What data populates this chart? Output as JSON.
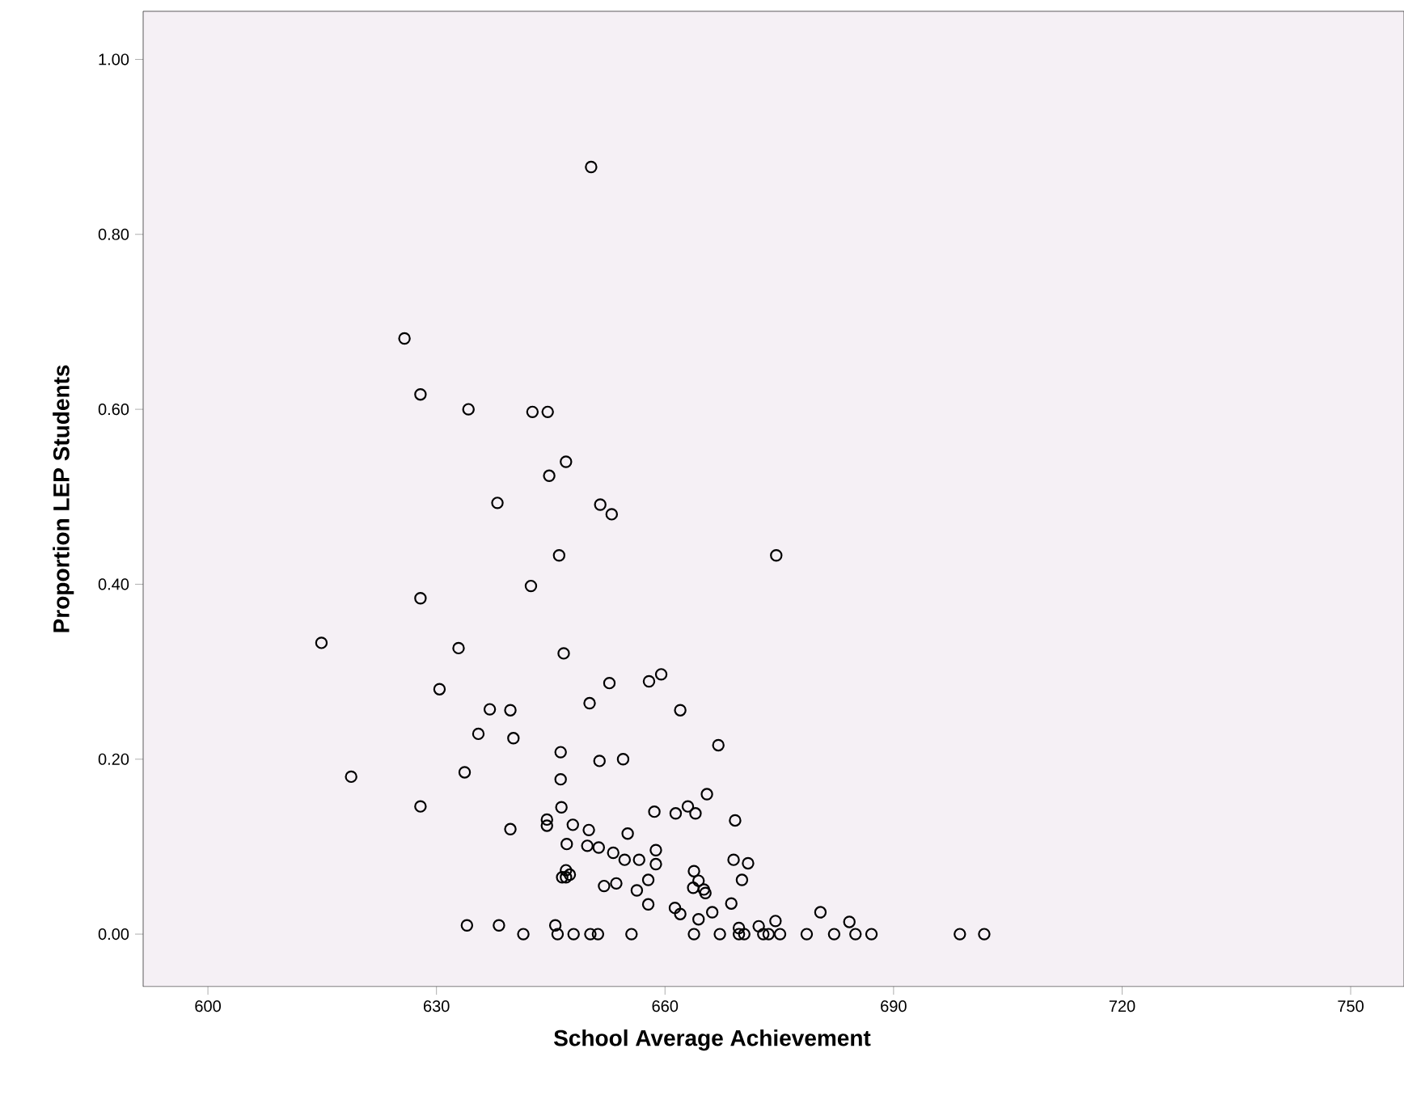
{
  "chart_data": {
    "type": "scatter",
    "xlabel": "School Average Achievement",
    "ylabel": "Proportion LEP Students",
    "xlim": [
      591.5,
      757
    ],
    "xticks": [
      600,
      630,
      660,
      690,
      720,
      750
    ],
    "ylim": [
      -0.06,
      1.055
    ],
    "yticks": [
      {
        "value": 0,
        "label": "0.00"
      },
      {
        "value": 0.2,
        "label": "0.20"
      },
      {
        "value": 0.4,
        "label": "0.40"
      },
      {
        "value": 0.6,
        "label": "0.60"
      },
      {
        "value": 0.8,
        "label": "0.80"
      },
      {
        "value": 1,
        "label": "1.00"
      }
    ],
    "marker": "circle",
    "grid": false,
    "series": [
      {
        "color": "#000000",
        "x": [
          650.3,
          625.8,
          627.9,
          634.2,
          642.6,
          644.6,
          647.0,
          644.8,
          638.0,
          651.5,
          653.0,
          646.1,
          642.4,
          627.9,
          614.9,
          632.9,
          646.7,
          674.6,
          630.4,
          652.7,
          657.9,
          659.5,
          650.1,
          662.0,
          637.0,
          639.7,
          635.5,
          640.1,
          646.3,
          651.4,
          654.5,
          618.8,
          633.7,
          646.3,
          646.4,
          627.9,
          658.6,
          661.4,
          663.0,
          639.7,
          644.5,
          644.5,
          647.9,
          650.0,
          655.1,
          647.1,
          649.8,
          651.3,
          653.2,
          654.7,
          656.6,
          658.8,
          658.8,
          647.0,
          647.0,
          646.5,
          647.5,
          657.8,
          652.0,
          653.6,
          656.3,
          657.8,
          661.3,
          662.0,
          634.0,
          638.2,
          641.4,
          645.6,
          645.9,
          648.0,
          650.2,
          651.2,
          655.6,
          663.8,
          663.8,
          663.7,
          667.0,
          665.5,
          664.0,
          669.2,
          669.0,
          670.9,
          670.1,
          664.4,
          665.1,
          665.3,
          664.4,
          666.2,
          668.7,
          669.7,
          672.3,
          674.5,
          680.4,
          684.2,
          667.2,
          669.7,
          670.4,
          672.9,
          673.6,
          675.1,
          678.6,
          682.2,
          685.0,
          687.1,
          698.7,
          701.9
        ],
        "values": [
          0.877,
          0.681,
          0.617,
          0.6,
          0.597,
          0.597,
          0.54,
          0.524,
          0.493,
          0.491,
          0.48,
          0.433,
          0.398,
          0.384,
          0.333,
          0.327,
          0.321,
          0.433,
          0.28,
          0.287,
          0.289,
          0.297,
          0.264,
          0.256,
          0.257,
          0.256,
          0.229,
          0.224,
          0.208,
          0.198,
          0.2,
          0.18,
          0.185,
          0.177,
          0.145,
          0.146,
          0.14,
          0.138,
          0.146,
          0.12,
          0.131,
          0.124,
          0.125,
          0.119,
          0.115,
          0.103,
          0.101,
          0.099,
          0.093,
          0.085,
          0.085,
          0.096,
          0.08,
          0.073,
          0.065,
          0.065,
          0.068,
          0.062,
          0.055,
          0.058,
          0.05,
          0.034,
          0.03,
          0.023,
          0.01,
          0.01,
          0,
          0.01,
          0,
          0,
          0,
          0,
          0,
          0,
          0.072,
          0.053,
          0.216,
          0.16,
          0.138,
          0.13,
          0.085,
          0.081,
          0.062,
          0.061,
          0.051,
          0.047,
          0.017,
          0.025,
          0.035,
          0.007,
          0.009,
          0.015,
          0.025,
          0.014,
          0,
          0,
          0,
          0,
          0,
          0,
          0,
          0,
          0,
          0,
          0,
          0
        ]
      }
    ]
  }
}
